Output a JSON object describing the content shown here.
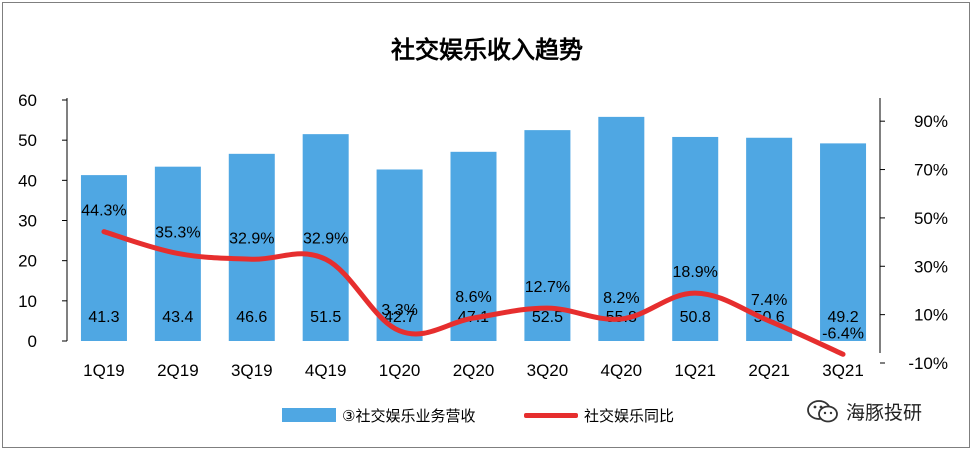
{
  "chart_data": {
    "type": "bar",
    "title": "社交娱乐收入趋势",
    "categories": [
      "1Q19",
      "2Q19",
      "3Q19",
      "4Q19",
      "1Q20",
      "2Q20",
      "3Q20",
      "4Q20",
      "1Q21",
      "2Q21",
      "3Q21"
    ],
    "series": [
      {
        "name": "③社交娱乐业务营收",
        "type": "bar",
        "axis": "left",
        "values": [
          41.3,
          43.4,
          46.6,
          51.5,
          42.7,
          47.1,
          52.5,
          55.8,
          50.8,
          50.6,
          49.2
        ],
        "labels": [
          "41.3",
          "43.4",
          "46.6",
          "51.5",
          "42.7",
          "47.1",
          "52.5",
          "55.8",
          "50.8",
          "50.6",
          "49.2"
        ],
        "color": "#4fa7e3"
      },
      {
        "name": "社交娱乐同比",
        "type": "line",
        "axis": "right",
        "values": [
          44.3,
          35.3,
          32.9,
          32.9,
          3.3,
          8.6,
          12.7,
          8.2,
          18.9,
          7.4,
          -6.4
        ],
        "labels": [
          "44.3%",
          "35.3%",
          "32.9%",
          "32.9%",
          "3.3%",
          "8.6%",
          "12.7%",
          "8.2%",
          "18.9%",
          "7.4%",
          "-6.4%"
        ],
        "color": "#e62e2e"
      }
    ],
    "left_axis": {
      "ylim": [
        0,
        60
      ],
      "ticks": [
        "0",
        "10",
        "20",
        "30",
        "40",
        "50",
        "60"
      ]
    },
    "right_axis": {
      "ylim": [
        -10,
        100
      ],
      "ticks": [
        "-10%",
        "10%",
        "30%",
        "50%",
        "70%",
        "90%"
      ]
    },
    "grid": false,
    "legend_position": "bottom"
  },
  "watermark": {
    "text": "海豚投研",
    "icon": "wechat-icon"
  }
}
